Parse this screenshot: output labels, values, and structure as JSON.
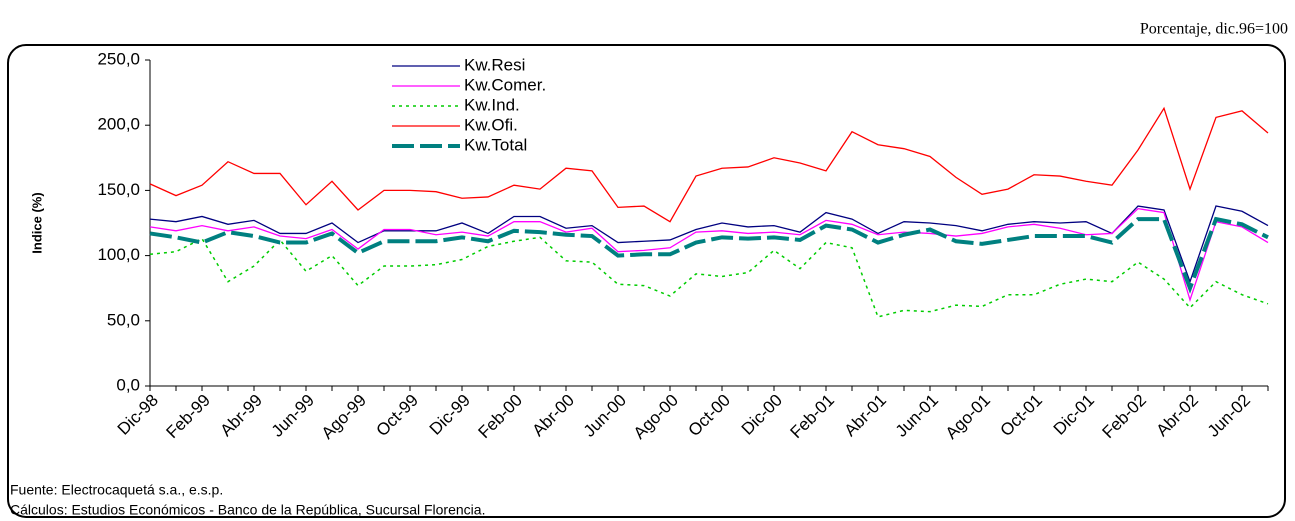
{
  "chart_data": {
    "type": "line",
    "note": "Porcentaje, dic.96=100",
    "y_label": "Indice (%)",
    "footnotes": [
      "Fuente: Electrocaquetá s.a., e.s.p.",
      "Cálculos:  Estudios Económicos - Banco de la República, Sucursal Florencia."
    ],
    "categories": [
      "Dic-98",
      null,
      "Feb-99",
      null,
      "Abr-99",
      null,
      "Jun-99",
      null,
      "Ago-99",
      null,
      "Oct-99",
      null,
      "Dic-99",
      null,
      "Feb-00",
      null,
      "Abr-00",
      null,
      "Jun-00",
      null,
      "Ago-00",
      null,
      "Oct-00",
      null,
      "Dic-00",
      null,
      "Feb-01",
      null,
      "Abr-01",
      null,
      "Jun-01",
      null,
      "Ago-01",
      null,
      "Oct-01",
      null,
      "Dic-01",
      null,
      "Feb-02",
      null,
      "Abr-02",
      null,
      "Jun-02",
      null
    ],
    "series": [
      {
        "name": "Kw.Resi",
        "color": "#000080",
        "style": "solid",
        "width": 1.3,
        "values": [
          128,
          126,
          130,
          124,
          127,
          117,
          117,
          125,
          110,
          119,
          119,
          119,
          125,
          117,
          130,
          130,
          121,
          123,
          110,
          111,
          112,
          120,
          125,
          122,
          123,
          118,
          133,
          128,
          117,
          126,
          125,
          123,
          119,
          124,
          126,
          125,
          126,
          117,
          138,
          135,
          80,
          138,
          134,
          123
        ]
      },
      {
        "name": "Kw.Comer.",
        "color": "#ff00ff",
        "style": "solid",
        "width": 1.3,
        "values": [
          122,
          119,
          123,
          119,
          122,
          115,
          113,
          120,
          105,
          120,
          120,
          116,
          118,
          115,
          126,
          126,
          118,
          121,
          103,
          104,
          106,
          118,
          119,
          117,
          118,
          116,
          127,
          124,
          116,
          118,
          117,
          115,
          117,
          122,
          124,
          121,
          116,
          117,
          136,
          133,
          66,
          126,
          122,
          110
        ]
      },
      {
        "name": "Kw.Ind.",
        "color": "#00cc00",
        "style": "dotted",
        "width": 1.5,
        "values": [
          101,
          103,
          113,
          80,
          92,
          112,
          88,
          100,
          77,
          92,
          92,
          93,
          97,
          107,
          111,
          114,
          96,
          95,
          78,
          77,
          69,
          86,
          84,
          87,
          104,
          90,
          110,
          106,
          53,
          58,
          57,
          62,
          61,
          70,
          70,
          78,
          82,
          80,
          95,
          82,
          60,
          80,
          70,
          63
        ]
      },
      {
        "name": "Kw.Ofi.",
        "color": "#ff0000",
        "style": "solid",
        "width": 1.3,
        "values": [
          155,
          146,
          154,
          172,
          163,
          163,
          139,
          157,
          135,
          150,
          150,
          149,
          144,
          145,
          154,
          151,
          167,
          165,
          137,
          138,
          126,
          161,
          167,
          168,
          175,
          171,
          165,
          195,
          185,
          182,
          176,
          160,
          147,
          151,
          162,
          161,
          157,
          154,
          181,
          213,
          151,
          206,
          211,
          194
        ]
      },
      {
        "name": "Kw.Total",
        "color": "#008080",
        "style": "dashed",
        "width": 4,
        "values": [
          117,
          114,
          110,
          118,
          115,
          110,
          110,
          117,
          102,
          111,
          111,
          111,
          114,
          111,
          119,
          118,
          116,
          115,
          100,
          101,
          101,
          110,
          114,
          113,
          114,
          112,
          123,
          120,
          110,
          116,
          120,
          111,
          109,
          112,
          115,
          115,
          115,
          110,
          128,
          128,
          75,
          128,
          124,
          114
        ]
      }
    ],
    "ylim": [
      0,
      250
    ],
    "yticks": [
      {
        "value": 0,
        "label": "0,0"
      },
      {
        "value": 50,
        "label": "50,0"
      },
      {
        "value": 100,
        "label": "100,0"
      },
      {
        "value": 150,
        "label": "150,0"
      },
      {
        "value": 200,
        "label": "200,0"
      },
      {
        "value": 250,
        "label": "250,0"
      }
    ]
  }
}
